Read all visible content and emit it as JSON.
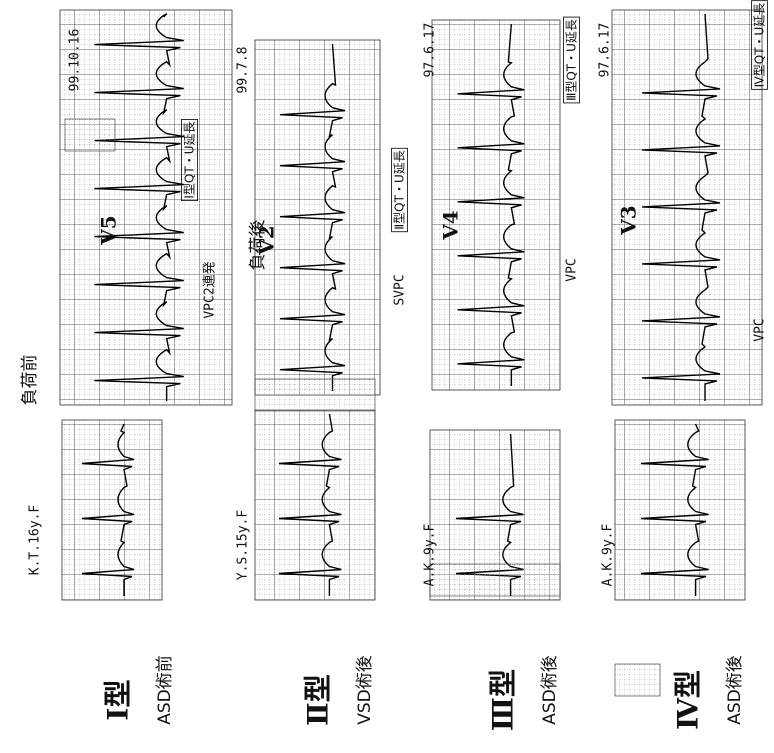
{
  "header": {
    "pre": "負荷前",
    "post": "負荷後"
  },
  "panels": [
    {
      "type": "Ⅰ型",
      "condition": "ASD術前",
      "patient": "K.T.16y.F",
      "date": "99.10.16",
      "lead": "V5",
      "annotations": [
        "VPC2連発",
        "Ⅰ型QT・U延長"
      ]
    },
    {
      "type": "Ⅱ型",
      "condition": "VSD術後",
      "patient": "Y.S.15y.F",
      "date": "99.7.8",
      "lead": "V2",
      "annotations": [
        "SVPC",
        "Ⅱ型QT・U延長"
      ]
    },
    {
      "type": "Ⅲ型",
      "condition": "ASD術後",
      "patient": "A.K.9y.F",
      "date": "97.6.17",
      "lead": "V4",
      "annotations": [
        "VPC",
        "Ⅲ型QT・U延長"
      ]
    },
    {
      "type": "Ⅳ型",
      "condition": "ASD術後",
      "patient": "A.K.9y.F",
      "date": "97.6.17",
      "lead": "V3",
      "annotations": [
        "VPC",
        "Ⅳ型QT・U延長"
      ]
    }
  ]
}
